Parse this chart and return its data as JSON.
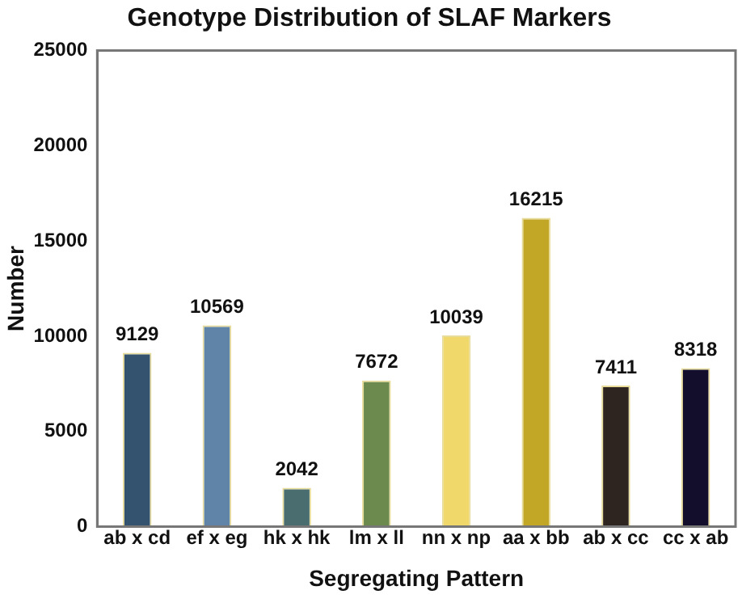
{
  "chart_data": {
    "type": "bar",
    "title": "Genotype Distribution of SLAF Markers",
    "xlabel": "Segregating Pattern",
    "ylabel": "Number",
    "categories": [
      "ab x cd",
      "ef x eg",
      "hk x hk",
      "lm x ll",
      "nn x np",
      "aa x bb",
      "ab x cc",
      "cc x ab"
    ],
    "values": [
      9129,
      10569,
      2042,
      7672,
      10039,
      16215,
      7411,
      8318
    ],
    "colors": [
      "#34536f",
      "#5f84a8",
      "#4a6e70",
      "#6c8a4e",
      "#f0d96a",
      "#c2a626",
      "#2e2420",
      "#120e2c"
    ],
    "ylim": [
      0,
      25000
    ],
    "yticks": [
      0,
      5000,
      10000,
      15000,
      20000,
      25000
    ],
    "grid": false,
    "data_labels": true,
    "legend": false
  }
}
